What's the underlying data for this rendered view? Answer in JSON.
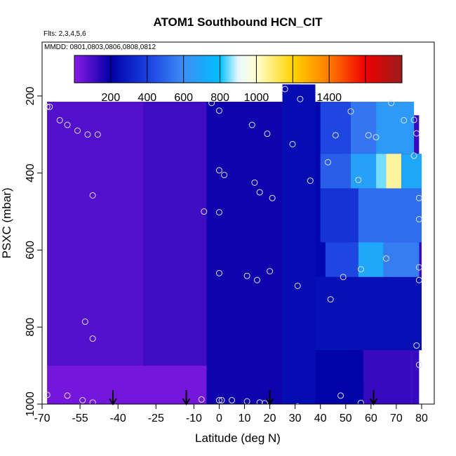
{
  "chart_data": {
    "type": "heatmap",
    "title": "ATOM1 Southbound HCN_CIT",
    "notes": [
      "Flts: 2,3,4,5,6",
      "MMDD: 0801,0803,0806,0808,0812"
    ],
    "xlabel": "Latitude (deg N)",
    "ylabel": "PSXC (mbar)",
    "xlim": [
      -70,
      85
    ],
    "ylim": [
      1000,
      60
    ],
    "y_inverted": true,
    "x_ticks": [
      -70,
      -55,
      -40,
      -25,
      -10,
      0,
      10,
      20,
      30,
      40,
      50,
      60,
      70,
      80
    ],
    "y_ticks": [
      200,
      400,
      600,
      800,
      1000
    ],
    "colorbar": {
      "range": [
        0,
        1800
      ],
      "tick_values": [
        200,
        400,
        600,
        800,
        1000,
        1400
      ],
      "stop_values": [
        0,
        200,
        400,
        600,
        800,
        900,
        1000,
        1200,
        1400,
        1600,
        1800
      ],
      "stop_colors": [
        "#8a1ae6",
        "#0000a6",
        "#1a3fe0",
        "#3d8df5",
        "#00c0ff",
        "#e8f8ff",
        "#ffffd0",
        "#ffd400",
        "#ff7a00",
        "#ee0000",
        "#9b1c1c"
      ],
      "separators": [
        200,
        400,
        600,
        800,
        1000,
        1200,
        1400,
        1600
      ]
    },
    "domain_mask": [
      {
        "lat": [
          -68,
          25
        ],
        "p": [
          215,
          1000
        ]
      },
      {
        "lat": [
          25,
          32
        ],
        "p": [
          170,
          1000
        ]
      },
      {
        "lat": [
          32,
          76
        ],
        "p": [
          215,
          1000
        ]
      },
      {
        "lat": [
          76,
          79
        ],
        "p": [
          250,
          1000
        ]
      },
      {
        "lat": [
          79,
          80
        ],
        "p": [
          440,
          860
        ]
      },
      {
        "lat": [
          57,
          68
        ],
        "p": [
          940,
          1000
        ]
      }
    ],
    "field_regions": [
      {
        "lat": [
          -68,
          -30
        ],
        "p": [
          215,
          900
        ],
        "value": 80
      },
      {
        "lat": [
          -68,
          18
        ],
        "p": [
          900,
          1000
        ],
        "value": 30
      },
      {
        "lat": [
          -30,
          -5
        ],
        "p": [
          215,
          900
        ],
        "value": 110
      },
      {
        "lat": [
          -5,
          25
        ],
        "p": [
          215,
          1000
        ],
        "value": 180
      },
      {
        "lat": [
          25,
          38
        ],
        "p": [
          170,
          1000
        ],
        "value": 240
      },
      {
        "lat": [
          38,
          50
        ],
        "p": [
          215,
          1000
        ],
        "value": 230
      },
      {
        "lat": [
          40,
          52
        ],
        "p": [
          215,
          350
        ],
        "value": 420
      },
      {
        "lat": [
          52,
          62
        ],
        "p": [
          215,
          350
        ],
        "value": 540
      },
      {
        "lat": [
          62,
          77
        ],
        "p": [
          215,
          350
        ],
        "value": 650
      },
      {
        "lat": [
          40,
          52
        ],
        "p": [
          350,
          440
        ],
        "value": 480
      },
      {
        "lat": [
          52,
          62
        ],
        "p": [
          350,
          440
        ],
        "value": 680
      },
      {
        "lat": [
          62,
          66
        ],
        "p": [
          350,
          440
        ],
        "value": 850
      },
      {
        "lat": [
          66,
          72
        ],
        "p": [
          350,
          440
        ],
        "value": 1050
      },
      {
        "lat": [
          72,
          80
        ],
        "p": [
          350,
          440
        ],
        "value": 700
      },
      {
        "lat": [
          40,
          55
        ],
        "p": [
          440,
          580
        ],
        "value": 360
      },
      {
        "lat": [
          55,
          80
        ],
        "p": [
          440,
          580
        ],
        "value": 520
      },
      {
        "lat": [
          42,
          55
        ],
        "p": [
          580,
          670
        ],
        "value": 420
      },
      {
        "lat": [
          55,
          65
        ],
        "p": [
          580,
          670
        ],
        "value": 700
      },
      {
        "lat": [
          65,
          79
        ],
        "p": [
          580,
          670
        ],
        "value": 560
      },
      {
        "lat": [
          38,
          80
        ],
        "p": [
          670,
          860
        ],
        "value": 250
      },
      {
        "lat": [
          38,
          57
        ],
        "p": [
          860,
          1000
        ],
        "value": 210
      }
    ],
    "points": [
      [
        -68,
        228
      ],
      [
        -67,
        228
      ],
      [
        -63,
        263
      ],
      [
        -60,
        275
      ],
      [
        -56,
        290
      ],
      [
        -52,
        300
      ],
      [
        -48,
        300
      ],
      [
        -50,
        458
      ],
      [
        -53,
        786
      ],
      [
        -50,
        830
      ],
      [
        -68,
        976
      ],
      [
        -60,
        978
      ],
      [
        -54,
        990
      ],
      [
        -50,
        996
      ],
      [
        -3,
        218
      ],
      [
        0,
        238
      ],
      [
        13,
        275
      ],
      [
        19,
        298
      ],
      [
        29,
        325
      ],
      [
        26,
        182
      ],
      [
        32,
        208
      ],
      [
        43,
        372
      ],
      [
        46,
        302
      ],
      [
        52,
        240
      ],
      [
        59,
        302
      ],
      [
        62,
        307
      ],
      [
        68,
        218
      ],
      [
        73,
        263
      ],
      [
        77,
        262
      ],
      [
        78,
        297
      ],
      [
        77,
        355
      ],
      [
        55,
        418
      ],
      [
        36,
        420
      ],
      [
        0,
        393
      ],
      [
        2,
        405
      ],
      [
        14,
        425
      ],
      [
        16,
        450
      ],
      [
        21,
        465
      ],
      [
        -6,
        500
      ],
      [
        0,
        502
      ],
      [
        0,
        660
      ],
      [
        11,
        667
      ],
      [
        15,
        678
      ],
      [
        20,
        655
      ],
      [
        31,
        693
      ],
      [
        44,
        728
      ],
      [
        49,
        670
      ],
      [
        56,
        650
      ],
      [
        66,
        622
      ],
      [
        79,
        465
      ],
      [
        79,
        520
      ],
      [
        79,
        645
      ],
      [
        79,
        678
      ],
      [
        78,
        848
      ],
      [
        79,
        898
      ],
      [
        -7,
        988
      ],
      [
        0,
        990
      ],
      [
        1,
        990
      ],
      [
        5,
        990
      ],
      [
        11,
        993
      ],
      [
        16,
        996
      ],
      [
        18,
        998
      ],
      [
        31,
        1006
      ],
      [
        37,
        1010
      ],
      [
        48,
        978
      ],
      [
        56,
        997
      ]
    ],
    "arrows_lat": [
      -42,
      -13,
      20,
      61
    ]
  }
}
